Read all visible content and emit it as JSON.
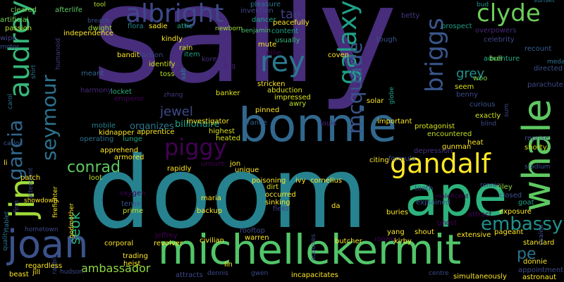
{
  "words": [
    {
      "text": "sally",
      "color": "#472d7b"
    },
    {
      "text": "doom",
      "color": "#26828e"
    },
    {
      "text": "bonnie",
      "color": "#31688e"
    },
    {
      "text": "ape",
      "color": "#2db27d"
    },
    {
      "text": "audrey",
      "color": "#35b779"
    },
    {
      "text": "michellekermit",
      "color": "#52c569"
    },
    {
      "text": "joan",
      "color": "#3b528b"
    },
    {
      "text": "whale",
      "color": "#5ec962"
    },
    {
      "text": "galaxy",
      "color": "#1fa187"
    },
    {
      "text": "albright",
      "color": "#3e4989"
    },
    {
      "text": "clyde",
      "color": "#6ccd5a"
    },
    {
      "text": "gandalf",
      "color": "#fde725"
    },
    {
      "text": "jin",
      "color": "#a0da39"
    },
    {
      "text": "rey",
      "color": "#2a788e"
    },
    {
      "text": "briggs",
      "color": "#39568c"
    },
    {
      "text": "seymour",
      "color": "#2c728e"
    },
    {
      "text": "mcquade",
      "color": "#3a548c"
    },
    {
      "text": "garcia",
      "color": "#31688e"
    },
    {
      "text": "piggy",
      "color": "#440154"
    },
    {
      "text": "embassy",
      "color": "#21918c"
    },
    {
      "text": "conrad",
      "color": "#5ec962"
    },
    {
      "text": "seok",
      "color": "#29af7f"
    },
    {
      "text": "grey",
      "color": "#21918c"
    },
    {
      "text": "pe",
      "color": "#2c728e"
    },
    {
      "text": "ambassador",
      "color": "#90d743"
    },
    {
      "text": "jewel",
      "color": "#3e4a89"
    },
    {
      "text": "tae",
      "color": "#433e85"
    },
    {
      "text": "organizes",
      "color": "#2a788e"
    },
    {
      "text": "billionaire",
      "color": "#20a386"
    },
    {
      "text": "cleared",
      "color": "#7ad151"
    },
    {
      "text": "afterlife",
      "color": "#5ec962"
    },
    {
      "text": "tool",
      "color": "#b5de2b"
    },
    {
      "text": "pleasure",
      "color": "#2c728e"
    },
    {
      "text": "invention",
      "color": "#404688"
    },
    {
      "text": "bud",
      "color": "#21918c"
    },
    {
      "text": "sunset",
      "color": "#2c728e"
    },
    {
      "text": "artificial",
      "color": "#75d054"
    },
    {
      "text": "passion",
      "color": "#bddf26"
    },
    {
      "text": "independence",
      "color": "#fde725"
    },
    {
      "text": "breach",
      "color": "#3b528b"
    },
    {
      "text": "flora",
      "color": "#25838e"
    },
    {
      "text": "dwight",
      "color": "#9fda3a"
    },
    {
      "text": "sadie",
      "color": "#fde725"
    },
    {
      "text": "attic",
      "color": "#20a486"
    },
    {
      "text": "dancer",
      "color": "#20a486"
    },
    {
      "text": "peacefully",
      "color": "#fde725"
    },
    {
      "text": "tough",
      "color": "#3b528b"
    },
    {
      "text": "betty",
      "color": "#443983"
    },
    {
      "text": "prospect",
      "color": "#1f9e89"
    },
    {
      "text": "overpowers",
      "color": "#482878"
    },
    {
      "text": "celebrity",
      "color": "#404688"
    },
    {
      "text": "recount",
      "color": "#355f8d"
    },
    {
      "text": "wipe",
      "color": "#404688"
    },
    {
      "text": "motor",
      "color": "#3b528b"
    },
    {
      "text": "kindly",
      "color": "#fde725"
    },
    {
      "text": "newborn",
      "color": "#a5db36"
    },
    {
      "text": "benjamin",
      "color": "#4ac16d"
    },
    {
      "text": "content",
      "color": "#20a486"
    },
    {
      "text": "usually",
      "color": "#35b779"
    },
    {
      "text": "rain",
      "color": "#dde318"
    },
    {
      "text": "mute",
      "color": "#fde725"
    },
    {
      "text": "bandit",
      "color": "#fde725"
    },
    {
      "text": "faction",
      "color": "#3e4989"
    },
    {
      "text": "item",
      "color": "#1f9f88"
    },
    {
      "text": "ellie",
      "color": "#440154"
    },
    {
      "text": "coven",
      "color": "#fde725"
    },
    {
      "text": "adventure",
      "color": "#22a884"
    },
    {
      "text": "bull",
      "color": "#90d743"
    },
    {
      "text": "medal",
      "color": "#2c728e"
    },
    {
      "text": "humanoid",
      "color": "#433e85"
    },
    {
      "text": "identify",
      "color": "#d0e11c"
    },
    {
      "text": "korean",
      "color": "#472d7b"
    },
    {
      "text": "bug",
      "color": "#482475"
    },
    {
      "text": "toss",
      "color": "#b5de2b"
    },
    {
      "text": "salt",
      "color": "#23888e"
    },
    {
      "text": "woo",
      "color": "#7ad151"
    },
    {
      "text": "directed",
      "color": "#3b528b"
    },
    {
      "text": "meant",
      "color": "#31688e"
    },
    {
      "text": "stricken",
      "color": "#fde725"
    },
    {
      "text": "abduction",
      "color": "#dde318"
    },
    {
      "text": "impressed",
      "color": "#dde318"
    },
    {
      "text": "awry",
      "color": "#bddf26"
    },
    {
      "text": "harmony",
      "color": "#482878"
    },
    {
      "text": "locket",
      "color": "#2db27d"
    },
    {
      "text": "emperor",
      "color": "#440154"
    },
    {
      "text": "zhang",
      "color": "#443983"
    },
    {
      "text": "banker",
      "color": "#dde318"
    },
    {
      "text": "solar",
      "color": "#fde725"
    },
    {
      "text": "globe",
      "color": "#20a486"
    },
    {
      "text": "seem",
      "color": "#dde318"
    },
    {
      "text": "benny",
      "color": "#3e4989"
    },
    {
      "text": "curious",
      "color": "#3b528b"
    },
    {
      "text": "parachute",
      "color": "#3e4989"
    },
    {
      "text": "carol",
      "color": "#2c728e"
    },
    {
      "text": "shirt",
      "color": "#2a788e"
    },
    {
      "text": "pinned",
      "color": "#fde725"
    },
    {
      "text": "exactly",
      "color": "#d0e11c"
    },
    {
      "text": "sum",
      "color": "#3e4989"
    },
    {
      "text": "mobile",
      "color": "#26828e"
    },
    {
      "text": "kidnapper",
      "color": "#fde725"
    },
    {
      "text": "apprentice",
      "color": "#fde725"
    },
    {
      "text": "investigator",
      "color": "#fde725"
    },
    {
      "text": "france",
      "color": "#355f8d"
    },
    {
      "text": "louis",
      "color": "#482475"
    },
    {
      "text": "important",
      "color": "#fde725"
    },
    {
      "text": "protagonist",
      "color": "#d8e219"
    },
    {
      "text": "blind",
      "color": "#3e4989"
    },
    {
      "text": "carlos",
      "color": "#38588c"
    },
    {
      "text": "operating",
      "color": "#2c728e"
    },
    {
      "text": "lunge",
      "color": "#20a486"
    },
    {
      "text": "highest",
      "color": "#d8e219"
    },
    {
      "text": "heated",
      "color": "#d8e219"
    },
    {
      "text": "encountered",
      "color": "#c2df23"
    },
    {
      "text": "heat",
      "color": "#fde725"
    },
    {
      "text": "gunman",
      "color": "#fde725"
    },
    {
      "text": "shorty",
      "color": "#d8e219"
    },
    {
      "text": "reprise",
      "color": "#3e4989"
    },
    {
      "text": "apprehend",
      "color": "#fde725"
    },
    {
      "text": "armored",
      "color": "#fde725"
    },
    {
      "text": "depression",
      "color": "#46327e"
    },
    {
      "text": "citing",
      "color": "#fde725"
    },
    {
      "text": "formula",
      "color": "#3b528b"
    },
    {
      "text": "stadium",
      "color": "#3b528b"
    },
    {
      "text": "li",
      "color": "#fde725"
    },
    {
      "text": "attendant",
      "color": "#3e4989"
    },
    {
      "text": "unsure",
      "color": "#440154"
    },
    {
      "text": "jon",
      "color": "#fde725"
    },
    {
      "text": "unique",
      "color": "#fde725"
    },
    {
      "text": "poisoning",
      "color": "#fde725"
    },
    {
      "text": "ivy",
      "color": "#fde725"
    },
    {
      "text": "cornelius",
      "color": "#fde725"
    },
    {
      "text": "patch",
      "color": "#fde725"
    },
    {
      "text": "loot",
      "color": "#bddf26"
    },
    {
      "text": "rapidly",
      "color": "#fde725"
    },
    {
      "text": "ronnie",
      "color": "#3e4989"
    },
    {
      "text": "riley",
      "color": "#8fd744"
    },
    {
      "text": "tablet",
      "color": "#2c728e"
    },
    {
      "text": "firefighter",
      "color": "#fde725"
    },
    {
      "text": "oxygen",
      "color": "#440154"
    },
    {
      "text": "dirt",
      "color": "#dde318"
    },
    {
      "text": "tooth",
      "color": "#3e4989"
    },
    {
      "text": "maleficent",
      "color": "#440154"
    },
    {
      "text": "closed",
      "color": "#3b528b"
    },
    {
      "text": "goat",
      "color": "#20a486"
    },
    {
      "text": "quality",
      "color": "#2c728e"
    },
    {
      "text": "showdown",
      "color": "#fde725"
    },
    {
      "text": "godmother",
      "color": "#fde725"
    },
    {
      "text": "tense",
      "color": "#3b528b"
    },
    {
      "text": "prime",
      "color": "#c2df23"
    },
    {
      "text": "maria",
      "color": "#fde725"
    },
    {
      "text": "occurred",
      "color": "#fde725"
    },
    {
      "text": "sinking",
      "color": "#fde725"
    },
    {
      "text": "da",
      "color": "#fde725"
    },
    {
      "text": "acquires",
      "color": "#3e4989"
    },
    {
      "text": "explained",
      "color": "#3b528b"
    },
    {
      "text": "exposure",
      "color": "#fde725"
    },
    {
      "text": "firm",
      "color": "#3e4989"
    },
    {
      "text": "backup",
      "color": "#fde725"
    },
    {
      "text": "fleet",
      "color": "#433e85"
    },
    {
      "text": "buries",
      "color": "#fde725"
    },
    {
      "text": "attract",
      "color": "#440154"
    },
    {
      "text": "pageant",
      "color": "#fde725"
    },
    {
      "text": "hometown",
      "color": "#3e4989"
    },
    {
      "text": "jeffrey",
      "color": "#440154"
    },
    {
      "text": "rooftop",
      "color": "#3e4989"
    },
    {
      "text": "yang",
      "color": "#fde725"
    },
    {
      "text": "shout",
      "color": "#fde725"
    },
    {
      "text": "extensive",
      "color": "#fde725"
    },
    {
      "text": "standard",
      "color": "#fde725"
    },
    {
      "text": "ghost",
      "color": "#440154"
    },
    {
      "text": "civilian",
      "color": "#fde725"
    },
    {
      "text": "warren",
      "color": "#fde725"
    },
    {
      "text": "butcher",
      "color": "#fde725"
    },
    {
      "text": "roomy",
      "color": "#440154"
    },
    {
      "text": "kirby",
      "color": "#fde725"
    },
    {
      "text": "sealed",
      "color": "#3e4989"
    },
    {
      "text": "rabbit",
      "color": "#3e4989"
    },
    {
      "text": "corporal",
      "color": "#fde725"
    },
    {
      "text": "revolver",
      "color": "#fde725"
    },
    {
      "text": "donnie",
      "color": "#fde725"
    },
    {
      "text": "regardless",
      "color": "#fde725"
    },
    {
      "text": "trading",
      "color": "#fde725"
    },
    {
      "text": "lin",
      "color": "#fde725"
    },
    {
      "text": "appointment",
      "color": "#3e4989"
    },
    {
      "text": "beast",
      "color": "#fde725"
    },
    {
      "text": "jill",
      "color": "#fde725"
    },
    {
      "text": "hudson",
      "color": "#3e4989"
    },
    {
      "text": "heist",
      "color": "#fde725"
    },
    {
      "text": "attracts",
      "color": "#3e4989"
    },
    {
      "text": "dennis",
      "color": "#3e4989"
    },
    {
      "text": "gwen",
      "color": "#3e4989"
    },
    {
      "text": "incapacitates",
      "color": "#fde725"
    },
    {
      "text": "centre",
      "color": "#3e4989"
    },
    {
      "text": "simultaneously",
      "color": "#fde725"
    },
    {
      "text": "astronaut",
      "color": "#fde725"
    }
  ]
}
